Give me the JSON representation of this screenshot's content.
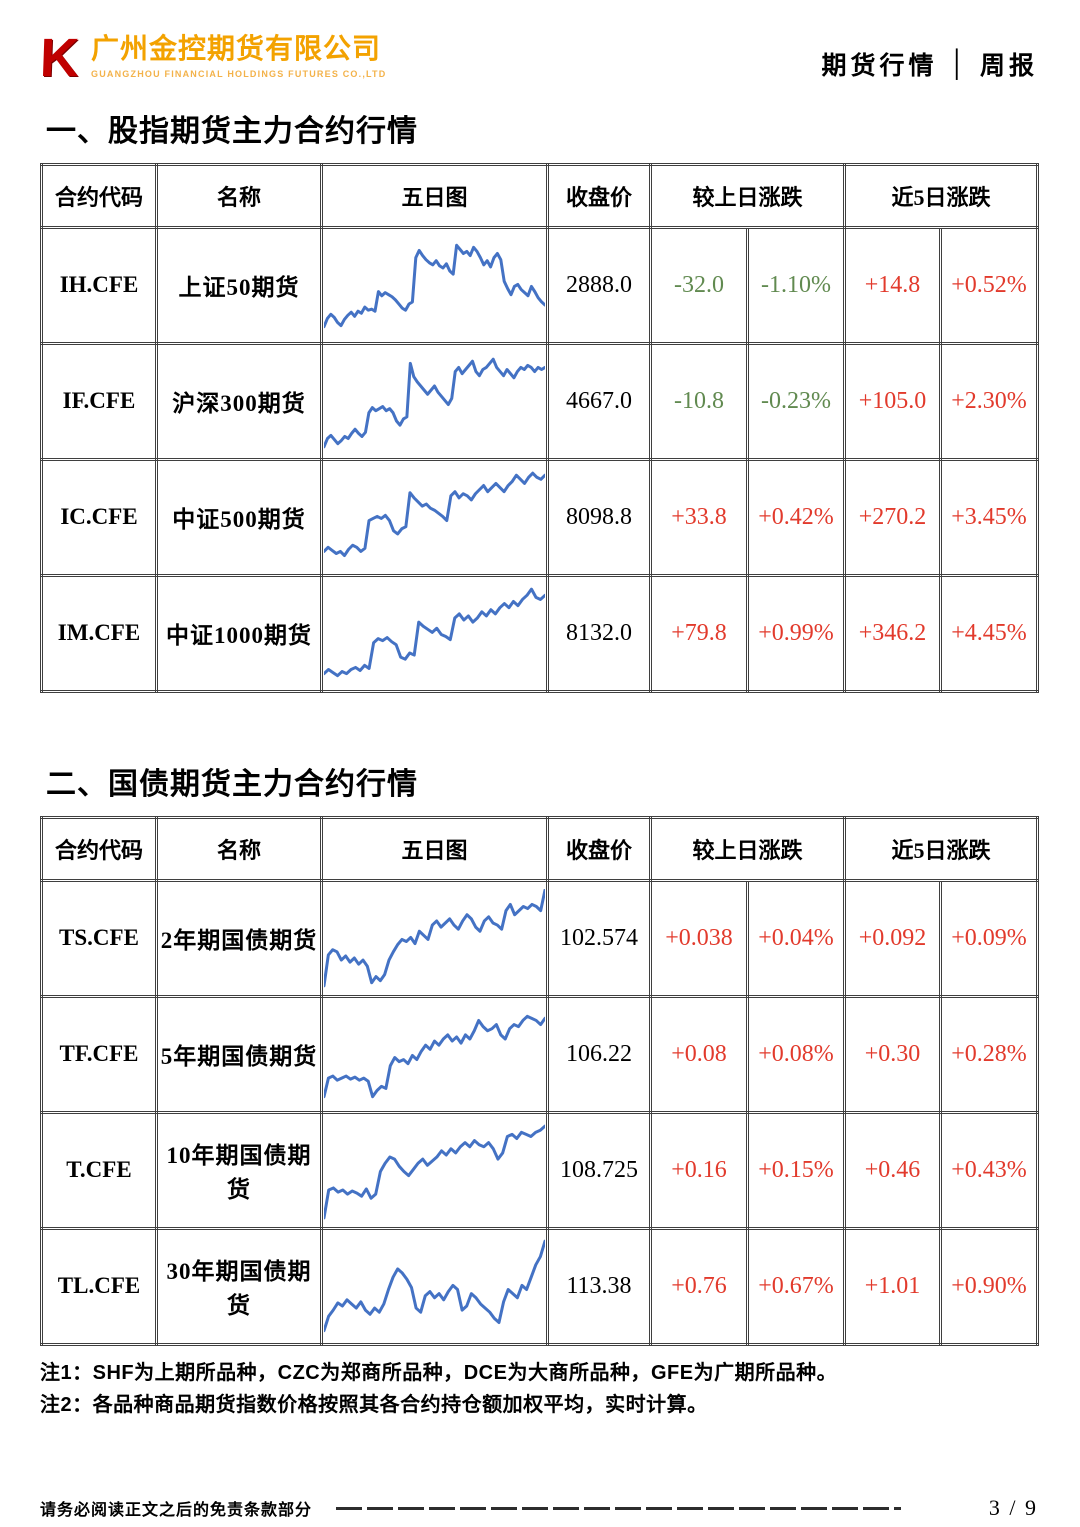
{
  "header": {
    "logo": {
      "k_letter": "K",
      "company_cn": "广州金控期货有限公司",
      "company_en": "GUANGZHOU FINANCIAL HOLDINGS FUTURES CO.,LTD"
    },
    "right_title_1": "期货行情",
    "divider": "│",
    "right_title_2": "周报"
  },
  "colors": {
    "up": "#e23a2c",
    "down": "#618a50",
    "sparkline": "#4472c4",
    "logo_red": "#c00000",
    "logo_orange": "#f3a200"
  },
  "table_columns": {
    "code": "合约代码",
    "name": "名称",
    "chart": "五日图",
    "close": "收盘价",
    "day": "较上日涨跌",
    "five": "近5日涨跌"
  },
  "sections": [
    {
      "title": "一、股指期货主力合约行情",
      "rows": [
        {
          "code": "IH.CFE",
          "name": "上证50期货",
          "close": "2888.0",
          "chg": "-32.0",
          "chg_dir": "down",
          "chg_pct": "-1.10%",
          "chg_pct_dir": "down",
          "chg5": "+14.8",
          "chg5_dir": "up",
          "chg5_pct": "+0.52%",
          "chg5_pct_dir": "up",
          "spark": [
            12,
            20,
            24,
            21,
            16,
            13,
            19,
            23,
            26,
            22,
            27,
            25,
            31,
            28,
            29,
            27,
            46,
            42,
            45,
            43,
            41,
            38,
            34,
            30,
            28,
            34,
            36,
            79,
            86,
            81,
            77,
            74,
            72,
            76,
            71,
            69,
            73,
            66,
            63,
            91,
            87,
            83,
            85,
            81,
            89,
            85,
            79,
            72,
            76,
            70,
            79,
            83,
            77,
            56,
            49,
            43,
            51,
            53,
            48,
            45,
            42,
            51,
            46,
            40,
            36,
            33
          ]
        },
        {
          "code": "IF.CFE",
          "name": "沪深300期货",
          "close": "4667.0",
          "chg": "-10.8",
          "chg_dir": "down",
          "chg_pct": "-0.23%",
          "chg_pct_dir": "down",
          "chg5": "+105.0",
          "chg5_dir": "up",
          "chg5_pct": "+2.30%",
          "chg5_pct_dir": "up",
          "spark": [
            8,
            16,
            19,
            15,
            11,
            14,
            18,
            16,
            21,
            25,
            21,
            18,
            22,
            41,
            46,
            43,
            45,
            47,
            43,
            45,
            41,
            33,
            29,
            35,
            37,
            89,
            76,
            71,
            67,
            63,
            59,
            63,
            67,
            61,
            57,
            53,
            49,
            55,
            81,
            85,
            79,
            83,
            87,
            91,
            81,
            77,
            83,
            85,
            89,
            93,
            85,
            81,
            77,
            83,
            79,
            75,
            81,
            85,
            83,
            87,
            85,
            81,
            85,
            83,
            85
          ]
        },
        {
          "code": "IC.CFE",
          "name": "中证500期货",
          "close": "8098.8",
          "chg": "+33.8",
          "chg_dir": "up",
          "chg_pct": "+0.42%",
          "chg_pct_dir": "up",
          "chg5": "+270.2",
          "chg5_dir": "up",
          "chg5_pct": "+3.45%",
          "chg5_pct_dir": "up",
          "spark": [
            19,
            23,
            20,
            17,
            19,
            15,
            21,
            25,
            23,
            19,
            22,
            49,
            51,
            53,
            51,
            54,
            49,
            39,
            36,
            41,
            43,
            76,
            71,
            67,
            63,
            65,
            61,
            59,
            56,
            53,
            49,
            73,
            77,
            71,
            75,
            73,
            69,
            75,
            79,
            83,
            77,
            81,
            85,
            81,
            77,
            83,
            87,
            93,
            89,
            85,
            91,
            95,
            91,
            89,
            93
          ]
        },
        {
          "code": "IM.CFE",
          "name": "中证1000期货",
          "close": "8132.0",
          "chg": "+79.8",
          "chg_dir": "up",
          "chg_pct": "+0.99%",
          "chg_pct_dir": "up",
          "chg5": "+346.2",
          "chg5_dir": "up",
          "chg5_pct": "+4.45%",
          "chg5_pct_dir": "up",
          "spark": [
            13,
            17,
            14,
            11,
            15,
            13,
            17,
            19,
            16,
            21,
            18,
            43,
            47,
            45,
            48,
            44,
            41,
            29,
            27,
            33,
            31,
            63,
            59,
            56,
            53,
            57,
            51,
            49,
            46,
            67,
            71,
            65,
            69,
            63,
            67,
            73,
            69,
            75,
            71,
            77,
            81,
            77,
            83,
            79,
            85,
            89,
            95,
            87,
            85,
            89
          ]
        }
      ]
    },
    {
      "title": "二、国债期货主力合约行情",
      "rows": [
        {
          "code": "TS.CFE",
          "name": "2年期国债期货",
          "close": "102.574",
          "chg": "+0.038",
          "chg_dir": "up",
          "chg_pct": "+0.04%",
          "chg_pct_dir": "up",
          "chg5": "+0.092",
          "chg5_dir": "up",
          "chg5_pct": "+0.09%",
          "chg5_pct_dir": "up",
          "spark": [
            6,
            36,
            41,
            39,
            31,
            35,
            29,
            33,
            27,
            31,
            25,
            9,
            15,
            11,
            17,
            31,
            39,
            46,
            51,
            49,
            53,
            47,
            59,
            55,
            51,
            65,
            69,
            63,
            67,
            71,
            65,
            61,
            69,
            75,
            71,
            63,
            59,
            69,
            73,
            67,
            65,
            61,
            79,
            85,
            75,
            79,
            83,
            81,
            85,
            83,
            79,
            99
          ]
        },
        {
          "code": "TF.CFE",
          "name": "5年期国债期货",
          "close": "106.22",
          "chg": "+0.08",
          "chg_dir": "up",
          "chg_pct": "+0.08%",
          "chg_pct_dir": "up",
          "chg5": "+0.30",
          "chg5_dir": "up",
          "chg5_pct": "+0.28%",
          "chg5_pct_dir": "up",
          "spark": [
            11,
            29,
            31,
            27,
            29,
            31,
            28,
            30,
            27,
            29,
            26,
            11,
            17,
            21,
            19,
            41,
            49,
            45,
            47,
            43,
            51,
            47,
            55,
            61,
            57,
            65,
            61,
            67,
            71,
            65,
            69,
            63,
            71,
            67,
            75,
            85,
            79,
            75,
            77,
            81,
            71,
            67,
            77,
            81,
            79,
            85,
            89,
            87,
            85,
            81,
            87
          ]
        },
        {
          "code": "T.CFE",
          "name": "10年期国债期货",
          "close": "108.725",
          "chg": "+0.16",
          "chg_dir": "up",
          "chg_pct": "+0.15%",
          "chg_pct_dir": "up",
          "chg5": "+0.46",
          "chg5_dir": "up",
          "chg5_pct": "+0.43%",
          "chg5_pct_dir": "up",
          "spark": [
            6,
            33,
            35,
            31,
            33,
            29,
            32,
            30,
            27,
            34,
            25,
            29,
            51,
            59,
            65,
            63,
            56,
            51,
            47,
            53,
            59,
            63,
            57,
            61,
            65,
            71,
            67,
            73,
            69,
            75,
            79,
            75,
            81,
            77,
            75,
            79,
            73,
            63,
            69,
            85,
            87,
            83,
            89,
            87,
            85,
            89,
            91,
            95
          ]
        },
        {
          "code": "TL.CFE",
          "name": "30年期国债期货",
          "close": "113.38",
          "chg": "+0.76",
          "chg_dir": "up",
          "chg_pct": "+0.67%",
          "chg_pct_dir": "up",
          "chg5": "+1.01",
          "chg5_dir": "up",
          "chg5_pct": "+0.90%",
          "chg5_pct_dir": "up",
          "spark": [
            9,
            23,
            29,
            36,
            33,
            39,
            35,
            31,
            37,
            29,
            25,
            31,
            27,
            35,
            49,
            61,
            69,
            65,
            59,
            51,
            31,
            27,
            43,
            47,
            41,
            45,
            39,
            47,
            53,
            49,
            29,
            33,
            45,
            41,
            35,
            31,
            27,
            21,
            17,
            37,
            49,
            45,
            41,
            53,
            49,
            61,
            73,
            81,
            96
          ]
        }
      ]
    }
  ],
  "notes": [
    "注1：SHF为上期所品种，CZC为郑商所品种，DCE为大商所品种，GFE为广期所品种。",
    "注2：各品种商品期货指数价格按照其各合约持仓额加权平均，实时计算。"
  ],
  "footer": {
    "disclaimer": "请务必阅读正文之后的免责条款部分",
    "page": "3 / 9"
  }
}
